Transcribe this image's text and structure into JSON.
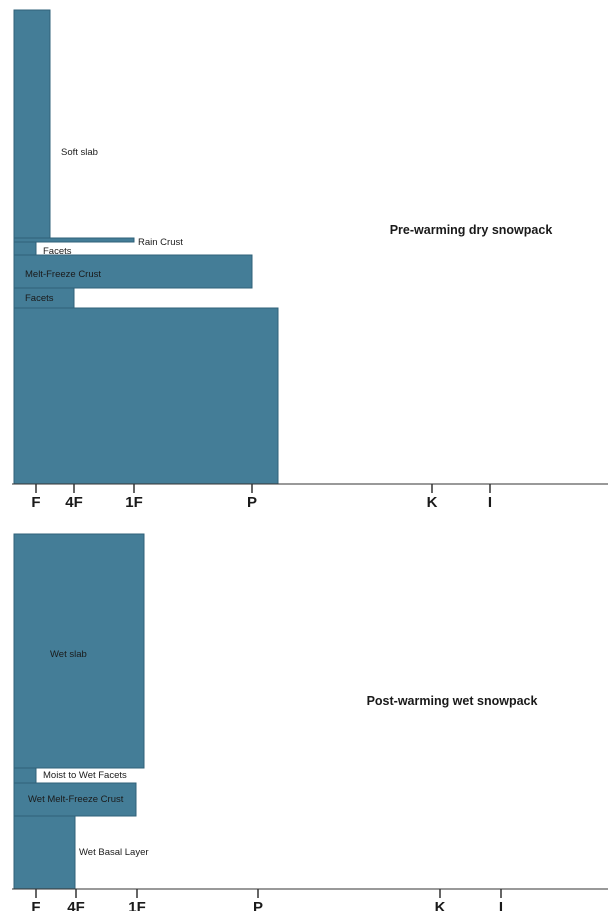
{
  "colors": {
    "layer_fill": "#447d97",
    "layer_stroke": "#2f6179",
    "axis": "#333333"
  },
  "hardness_scale": [
    "F",
    "4F",
    "1F",
    "P",
    "K",
    "I"
  ],
  "chart_data": [
    {
      "type": "bar",
      "orientation": "horizontal",
      "title": "Pre-warming dry snowpack",
      "x_axis": {
        "ticks": [
          "F",
          "4F",
          "1F",
          "P",
          "K",
          "I"
        ]
      },
      "layers_top_to_bottom": [
        {
          "label": "Soft slab",
          "hardness": "F"
        },
        {
          "label": "",
          "hardness": "F"
        },
        {
          "label": "Rain Crust",
          "hardness": "1F"
        },
        {
          "label": "Facets",
          "hardness": "F"
        },
        {
          "label": "Melt-Freeze Crust",
          "hardness": "P"
        },
        {
          "label": "Facets",
          "hardness": "4F"
        },
        {
          "label": "",
          "hardness": "P"
        }
      ]
    },
    {
      "type": "bar",
      "orientation": "horizontal",
      "title": "Post-warming wet snowpack",
      "x_axis": {
        "ticks": [
          "F",
          "4F",
          "1F",
          "P",
          "K",
          "I"
        ]
      },
      "layers_top_to_bottom": [
        {
          "label": "Wet slab",
          "hardness": "1F"
        },
        {
          "label": "Moist to Wet Facets",
          "hardness": "F"
        },
        {
          "label": "Wet Melt-Freeze Crust",
          "hardness": "1F"
        },
        {
          "label": "Wet Basal Layer",
          "hardness": "4F"
        }
      ]
    }
  ]
}
